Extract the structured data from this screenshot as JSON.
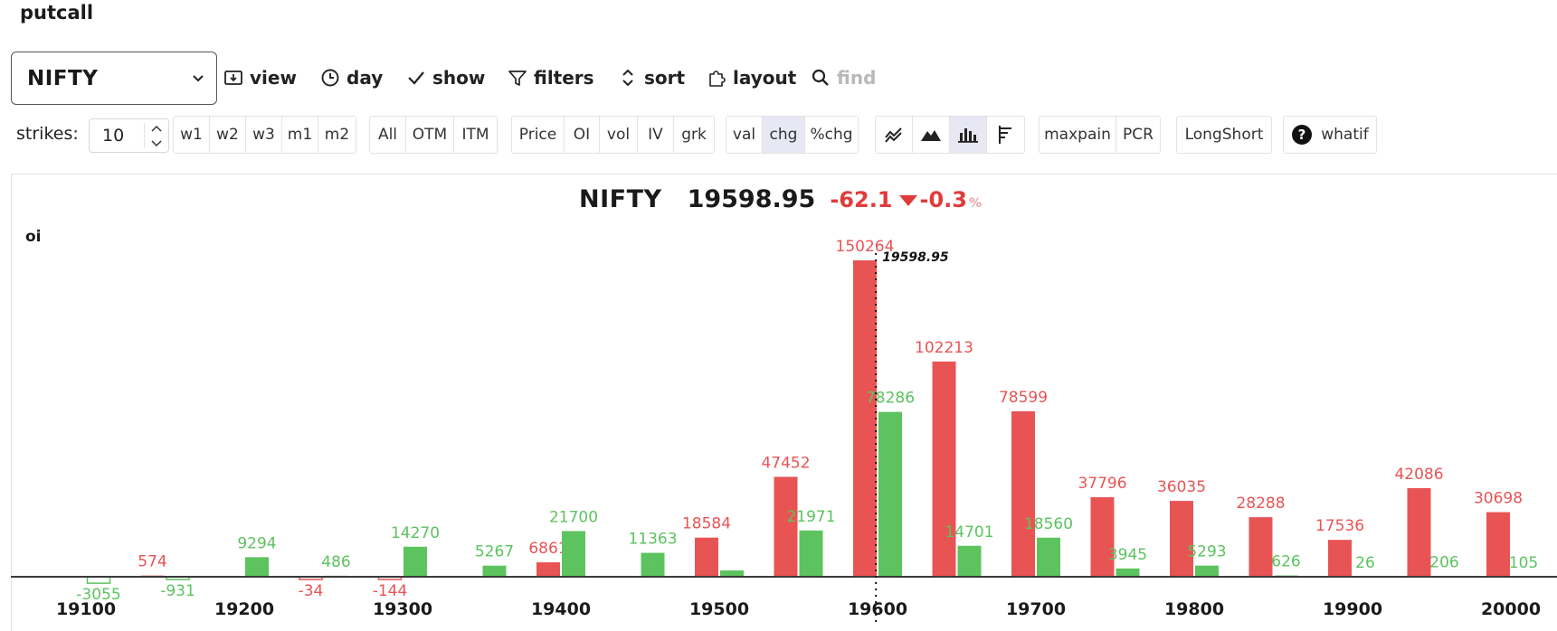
{
  "app": {
    "title": "putcall"
  },
  "toolbar": {
    "ticker": "NIFTY",
    "view": "view",
    "day": "day",
    "show": "show",
    "filters": "filters",
    "sort": "sort",
    "layout": "layout",
    "find": "find"
  },
  "controls": {
    "strikes_label": "strikes:",
    "strikes_value": "10",
    "expiries": [
      "w1",
      "w2",
      "w3",
      "m1",
      "m2"
    ],
    "moneyness": [
      "All",
      "OTM",
      "ITM"
    ],
    "metrics": [
      "Price",
      "OI",
      "vol",
      "IV",
      "grk"
    ],
    "modes": [
      "val",
      "chg",
      "%chg"
    ],
    "active_mode": "chg",
    "chart_types": [
      "line-chart-icon",
      "area-chart-icon",
      "bar-chart-icon",
      "horizontal-bar-icon"
    ],
    "active_chart_type": "bar-chart-icon",
    "analysis": [
      "maxpain",
      "PCR"
    ],
    "longshort": "LongShort",
    "whatif": "whatif"
  },
  "quote": {
    "symbol": "NIFTY",
    "price": "19598.95",
    "change": "-62.1",
    "change_pct": "-0.3",
    "pct_sign": "%"
  },
  "colors": {
    "calls": "#e85454",
    "puts": "#5cc35f",
    "negative": "#e03b3b",
    "active_bg": "#e7e8f4"
  },
  "chart_data": {
    "type": "bar",
    "ylabel": "oi",
    "spot": 19598.95,
    "spot_label": "19598.95",
    "x_ticks": [
      19100,
      19200,
      19300,
      19400,
      19500,
      19600,
      19700,
      19800,
      19900,
      20000
    ],
    "categories": [
      19100,
      19150,
      19200,
      19250,
      19300,
      19350,
      19400,
      19450,
      19500,
      19550,
      19600,
      19650,
      19700,
      19750,
      19800,
      19850,
      19900,
      19950,
      20000
    ],
    "series": [
      {
        "values": [
          null,
          574,
          null,
          -34,
          -144,
          null,
          6861,
          null,
          18584,
          47452,
          150264,
          102213,
          78599,
          37796,
          36035,
          28288,
          17536,
          42086,
          30698
        ]
      },
      {
        "values": [
          -3055,
          -931,
          9294,
          486,
          14270,
          5267,
          21700,
          11363,
          3000,
          21971,
          78286,
          14701,
          18560,
          3945,
          5293,
          626,
          26,
          206,
          105
        ]
      }
    ],
    "value_labels": [
      [
        "",
        "574",
        "",
        "-34",
        "-144",
        "",
        "6861",
        "",
        "18584",
        "47452",
        "150264",
        "102213",
        "78599",
        "37796",
        "36035",
        "28288",
        "17536",
        "42086",
        "30698"
      ],
      [
        "-3055",
        "-931",
        "9294",
        "486",
        "14270",
        "5267",
        "21700",
        "11363",
        "",
        "21971",
        "78286",
        "14701",
        "18560",
        "3945",
        "5293",
        "626",
        "26",
        "206",
        "105"
      ]
    ]
  }
}
